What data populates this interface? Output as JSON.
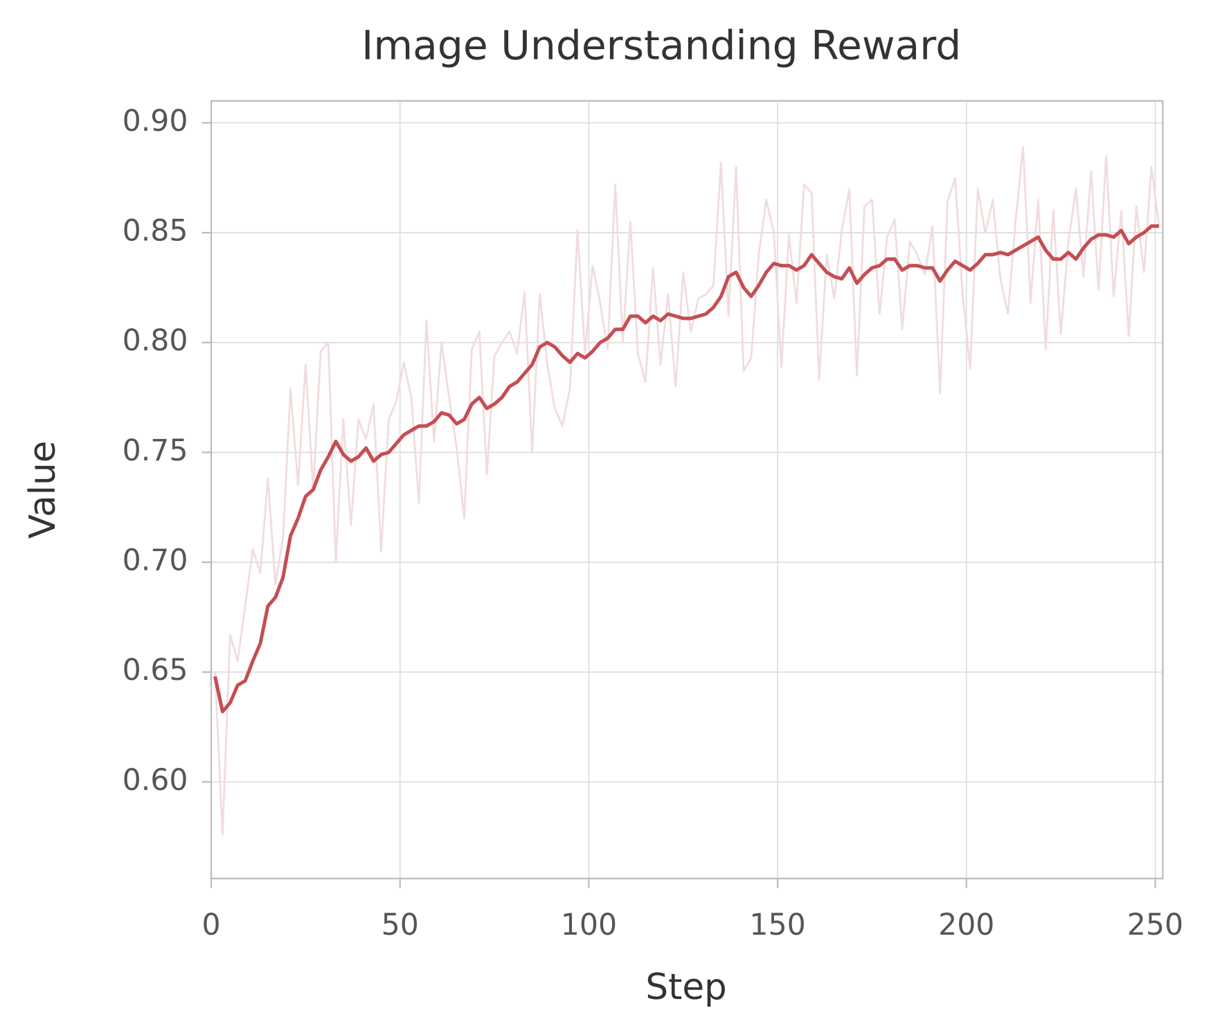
{
  "chart_data": {
    "type": "line",
    "title": "Image Understanding Reward",
    "x_label": "Step",
    "y_label": "Value",
    "xlim": [
      0,
      252
    ],
    "ylim": [
      0.556,
      0.91
    ],
    "xticks": [
      0,
      50,
      100,
      150,
      200,
      250
    ],
    "yticks": [
      {
        "value": 0.6,
        "label": "0.60"
      },
      {
        "value": 0.65,
        "label": "0.65"
      },
      {
        "value": 0.7,
        "label": "0.70"
      },
      {
        "value": 0.75,
        "label": "0.75"
      },
      {
        "value": 0.8,
        "label": "0.80"
      },
      {
        "value": 0.85,
        "label": "0.85"
      },
      {
        "value": 0.9,
        "label": "0.90"
      }
    ],
    "grid": true,
    "x": [
      1,
      3,
      5,
      7,
      9,
      11,
      13,
      15,
      17,
      19,
      21,
      23,
      25,
      27,
      29,
      31,
      33,
      35,
      37,
      39,
      41,
      43,
      45,
      47,
      49,
      51,
      53,
      55,
      57,
      59,
      61,
      63,
      65,
      67,
      69,
      71,
      73,
      75,
      77,
      79,
      81,
      83,
      85,
      87,
      89,
      91,
      93,
      95,
      97,
      99,
      101,
      103,
      105,
      107,
      109,
      111,
      113,
      115,
      117,
      119,
      121,
      123,
      125,
      127,
      129,
      131,
      133,
      135,
      137,
      139,
      141,
      143,
      145,
      147,
      149,
      151,
      153,
      155,
      157,
      159,
      161,
      163,
      165,
      167,
      169,
      171,
      173,
      175,
      177,
      179,
      181,
      183,
      185,
      187,
      189,
      191,
      193,
      195,
      197,
      199,
      201,
      203,
      205,
      207,
      209,
      211,
      213,
      215,
      217,
      219,
      221,
      223,
      225,
      227,
      229,
      231,
      233,
      235,
      237,
      239,
      241,
      243,
      245,
      247,
      249,
      251
    ],
    "series": [
      {
        "color": "#f2dcdd",
        "values": [
          0.65,
          0.576,
          0.667,
          0.655,
          0.68,
          0.706,
          0.695,
          0.738,
          0.69,
          0.711,
          0.779,
          0.735,
          0.79,
          0.733,
          0.796,
          0.8,
          0.7,
          0.765,
          0.717,
          0.765,
          0.756,
          0.772,
          0.705,
          0.765,
          0.773,
          0.791,
          0.775,
          0.727,
          0.81,
          0.755,
          0.8,
          0.775,
          0.752,
          0.72,
          0.797,
          0.805,
          0.74,
          0.794,
          0.8,
          0.805,
          0.795,
          0.823,
          0.75,
          0.822,
          0.79,
          0.77,
          0.762,
          0.779,
          0.851,
          0.795,
          0.835,
          0.818,
          0.797,
          0.872,
          0.8,
          0.855,
          0.795,
          0.782,
          0.834,
          0.79,
          0.822,
          0.78,
          0.832,
          0.805,
          0.82,
          0.822,
          0.826,
          0.882,
          0.812,
          0.88,
          0.787,
          0.793,
          0.84,
          0.865,
          0.85,
          0.789,
          0.849,
          0.818,
          0.872,
          0.868,
          0.783,
          0.84,
          0.82,
          0.851,
          0.87,
          0.785,
          0.862,
          0.865,
          0.813,
          0.848,
          0.856,
          0.806,
          0.846,
          0.84,
          0.831,
          0.853,
          0.777,
          0.864,
          0.875,
          0.822,
          0.788,
          0.87,
          0.85,
          0.865,
          0.829,
          0.813,
          0.855,
          0.889,
          0.818,
          0.865,
          0.797,
          0.86,
          0.804,
          0.846,
          0.87,
          0.83,
          0.878,
          0.824,
          0.885,
          0.821,
          0.86,
          0.803,
          0.862,
          0.832,
          0.88,
          0.853
        ]
      },
      {
        "color": "#c44e52",
        "values": [
          0.648,
          0.632,
          0.636,
          0.644,
          0.646,
          0.655,
          0.663,
          0.68,
          0.684,
          0.693,
          0.712,
          0.72,
          0.73,
          0.733,
          0.742,
          0.748,
          0.755,
          0.749,
          0.746,
          0.748,
          0.752,
          0.746,
          0.749,
          0.75,
          0.754,
          0.758,
          0.76,
          0.762,
          0.762,
          0.764,
          0.768,
          0.767,
          0.763,
          0.765,
          0.772,
          0.775,
          0.77,
          0.772,
          0.775,
          0.78,
          0.782,
          0.786,
          0.79,
          0.798,
          0.8,
          0.798,
          0.794,
          0.791,
          0.795,
          0.793,
          0.796,
          0.8,
          0.802,
          0.806,
          0.806,
          0.812,
          0.812,
          0.809,
          0.812,
          0.81,
          0.813,
          0.812,
          0.811,
          0.811,
          0.812,
          0.813,
          0.816,
          0.821,
          0.83,
          0.832,
          0.825,
          0.821,
          0.826,
          0.832,
          0.836,
          0.835,
          0.835,
          0.833,
          0.835,
          0.84,
          0.836,
          0.832,
          0.83,
          0.829,
          0.834,
          0.827,
          0.831,
          0.834,
          0.835,
          0.838,
          0.838,
          0.833,
          0.835,
          0.835,
          0.834,
          0.834,
          0.828,
          0.833,
          0.837,
          0.835,
          0.833,
          0.836,
          0.84,
          0.84,
          0.841,
          0.84,
          0.842,
          0.844,
          0.846,
          0.848,
          0.842,
          0.838,
          0.838,
          0.841,
          0.838,
          0.843,
          0.847,
          0.849,
          0.849,
          0.848,
          0.851,
          0.845,
          0.848,
          0.85,
          0.853,
          0.853
        ]
      }
    ]
  }
}
